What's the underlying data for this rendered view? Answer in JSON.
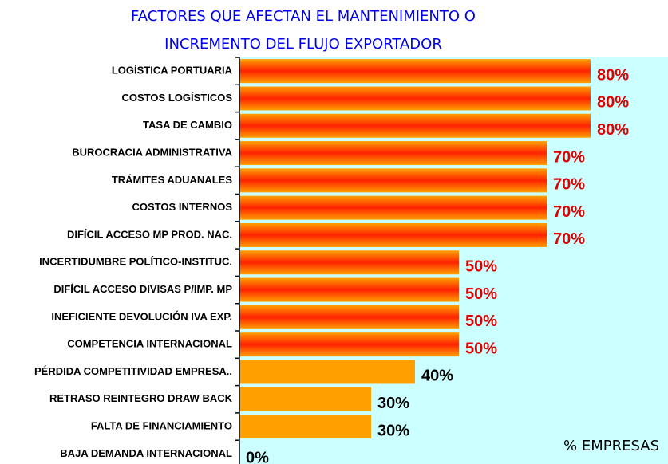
{
  "chart_data": {
    "type": "hbar",
    "title": [
      "FACTORES QUE AFECTAN EL MANTENIMIENTO O",
      "INCREMENTO DEL FLUJO EXPORTADOR"
    ],
    "x_label": "% EMPRESAS",
    "categories": [
      "LOGÍSTICA PORTUARIA",
      "COSTOS LOGÍSTICOS",
      "TASA DE CAMBIO",
      "BUROCRACIA ADMINISTRATIVA",
      "TRÁMITES ADUANALES",
      "COSTOS INTERNOS",
      "DIFÍCIL ACCESO MP PROD. NAC.",
      "INCERTIDUMBRE POLÍTICO-INSTITUC.",
      "DIFÍCIL ACCESO DIVISAS P/IMP. MP",
      "INEFICIENTE DEVOLUCIÓN IVA EXP.",
      "COMPETENCIA INTERNACIONAL",
      "PÉRDIDA COMPETITIVIDAD EMPRESA..",
      "RETRASO REINTEGRO DRAW BACK",
      "FALTA DE FINANCIAMIENTO",
      "BAJA DEMANDA INTERNACIONAL"
    ],
    "values": [
      80,
      80,
      80,
      70,
      70,
      70,
      70,
      50,
      50,
      50,
      50,
      40,
      30,
      30,
      0
    ],
    "value_labels": [
      "80%",
      "80%",
      "80%",
      "70%",
      "70%",
      "70%",
      "70%",
      "50%",
      "50%",
      "50%",
      "50%",
      "40%",
      "30%",
      "30%",
      "0%"
    ],
    "colors": [
      "#ff2200",
      "#ff2200",
      "#ff2200",
      "#ff2200",
      "#ff2200",
      "#ff2200",
      "#ff2200",
      "#ff2200",
      "#ff2200",
      "#ff2200",
      "#ff2200",
      "#ffa000",
      "#ffa000",
      "#ffa000",
      "#ffa000"
    ],
    "value_label_colors": [
      "#e00000",
      "#e00000",
      "#e00000",
      "#e00000",
      "#e00000",
      "#e00000",
      "#e00000",
      "#e00000",
      "#e00000",
      "#e00000",
      "#e00000",
      "#000000",
      "#000000",
      "#000000",
      "#000000"
    ],
    "plot_background": "#ccffff",
    "xlim": [
      0,
      100
    ]
  }
}
